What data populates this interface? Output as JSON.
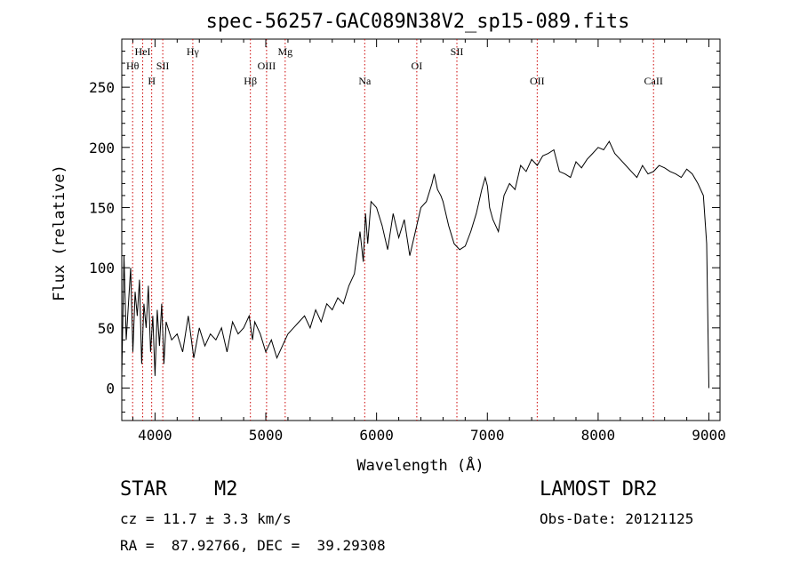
{
  "chart_data": {
    "type": "line",
    "title": "spec-56257-GAC089N38V2_sp15-089.fits",
    "xlabel": "Wavelength (Å)",
    "ylabel": "Flux (relative)",
    "xlim": [
      3700,
      9100
    ],
    "ylim": [
      -27,
      290
    ],
    "xticks": [
      4000,
      5000,
      6000,
      7000,
      8000,
      9000
    ],
    "yticks": [
      0,
      50,
      100,
      150,
      200,
      250
    ],
    "grid": false,
    "line_color": "#000000",
    "marker_color": "#cc0000",
    "series": [
      {
        "x": [
          3700,
          3720,
          3740,
          3760,
          3780,
          3800,
          3820,
          3840,
          3860,
          3880,
          3900,
          3920,
          3940,
          3960,
          3980,
          4000,
          4020,
          4040,
          4060,
          4080,
          4100,
          4150,
          4200,
          4250,
          4300,
          4350,
          4400,
          4450,
          4500,
          4550,
          4600,
          4650,
          4700,
          4750,
          4800,
          4850,
          4880,
          4900,
          4950,
          5000,
          5050,
          5100,
          5150,
          5200,
          5250,
          5300,
          5350,
          5400,
          5450,
          5500,
          5550,
          5600,
          5650,
          5700,
          5750,
          5800,
          5850,
          5880,
          5900,
          5920,
          5950,
          6000,
          6050,
          6100,
          6150,
          6200,
          6250,
          6300,
          6350,
          6400,
          6450,
          6500,
          6520,
          6550,
          6580,
          6600,
          6650,
          6700,
          6750,
          6800,
          6850,
          6900,
          6950,
          6980,
          7000,
          7020,
          7050,
          7100,
          7150,
          7200,
          7250,
          7300,
          7350,
          7400,
          7450,
          7500,
          7550,
          7600,
          7650,
          7700,
          7750,
          7800,
          7850,
          7900,
          7950,
          8000,
          8050,
          8100,
          8150,
          8200,
          8250,
          8300,
          8350,
          8400,
          8450,
          8500,
          8550,
          8600,
          8650,
          8700,
          8750,
          8800,
          8850,
          8900,
          8950,
          8980,
          9000
        ],
        "y": [
          10,
          110,
          40,
          70,
          100,
          30,
          80,
          60,
          90,
          20,
          70,
          50,
          85,
          30,
          60,
          10,
          65,
          35,
          70,
          20,
          55,
          40,
          45,
          30,
          60,
          25,
          50,
          35,
          45,
          40,
          50,
          30,
          55,
          45,
          50,
          60,
          40,
          55,
          45,
          30,
          40,
          25,
          35,
          45,
          50,
          55,
          60,
          50,
          65,
          55,
          70,
          65,
          75,
          70,
          85,
          95,
          130,
          105,
          145,
          120,
          155,
          150,
          135,
          115,
          145,
          125,
          140,
          110,
          130,
          150,
          155,
          170,
          178,
          165,
          160,
          155,
          135,
          120,
          115,
          118,
          130,
          145,
          165,
          175,
          168,
          150,
          140,
          130,
          160,
          170,
          165,
          185,
          180,
          190,
          185,
          193,
          195,
          198,
          180,
          178,
          175,
          188,
          183,
          190,
          195,
          200,
          198,
          205,
          195,
          190,
          185,
          180,
          175,
          185,
          178,
          180,
          185,
          183,
          180,
          178,
          175,
          182,
          178,
          170,
          160,
          120,
          0
        ]
      }
    ],
    "lines": [
      {
        "label": "Hθ",
        "x": 3798,
        "row": 2
      },
      {
        "label": "HeI",
        "x": 3889,
        "row": 1
      },
      {
        "label": "H",
        "x": 3970,
        "row": 3
      },
      {
        "label": "SII",
        "x": 4070,
        "row": 2
      },
      {
        "label": "Hγ",
        "x": 4341,
        "row": 1
      },
      {
        "label": "Hβ",
        "x": 4861,
        "row": 3
      },
      {
        "label": "OIII",
        "x": 5007,
        "row": 2
      },
      {
        "label": "Mg",
        "x": 5175,
        "row": 1
      },
      {
        "label": "Na",
        "x": 5893,
        "row": 3
      },
      {
        "label": "OI",
        "x": 6363,
        "row": 2
      },
      {
        "label": "SII",
        "x": 6725,
        "row": 1
      },
      {
        "label": "OII",
        "x": 7450,
        "row": 3
      },
      {
        "label": "CaII",
        "x": 8500,
        "row": 3
      }
    ]
  },
  "info": {
    "class": "STAR",
    "subclass": "M2",
    "survey": "LAMOST DR2",
    "cz": "cz = 11.7 ± 3.3 km/s",
    "obs_date": "Obs-Date: 20121125",
    "radec": "RA =  87.92766, DEC =  39.29308"
  }
}
